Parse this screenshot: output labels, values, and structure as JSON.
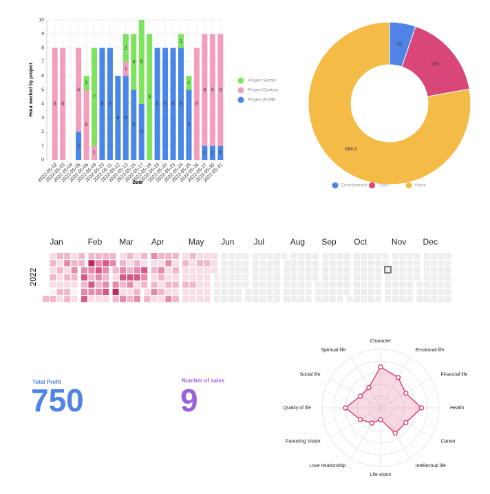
{
  "chart_data": [
    {
      "type": "stacked-bar",
      "y_label": "Hour worked by project",
      "x_label": "Date",
      "categories": [
        "2022-05-02",
        "2022-05-03",
        "2022-05-04",
        "2022-05-05",
        "2022-05-06",
        "2022-05-09",
        "2022-05-10",
        "2022-05-11",
        "2022-05-12",
        "2022-05-13",
        "2022-05-16",
        "2022-05-17",
        "2022-05-18",
        "2022-05-19",
        "2022-05-20",
        "2022-05-23",
        "2022-05-24",
        "2022-05-25",
        "2022-05-26",
        "2022-05-27",
        "2022-05-30",
        "2022-05-31"
      ],
      "series": [
        {
          "name": "Project ACME",
          "color": "#4a86e8",
          "values": [
            0,
            0,
            0,
            2,
            0,
            0,
            8,
            8,
            6,
            6,
            5,
            4,
            0,
            8,
            8,
            8,
            8,
            5,
            0,
            1,
            1,
            1
          ]
        },
        {
          "name": "Project Century",
          "color": "#f29ebf",
          "values": [
            8,
            8,
            0,
            6,
            5,
            1,
            0,
            0,
            0,
            1,
            0,
            0,
            0,
            0,
            0,
            0,
            0,
            0,
            8,
            8,
            8,
            8
          ]
        },
        {
          "name": "Project Secret",
          "color": "#7ee35e",
          "values": [
            0,
            0,
            0,
            0,
            1,
            7,
            0,
            0,
            0,
            2,
            4,
            6,
            9,
            0,
            0,
            0,
            1,
            1,
            0,
            0,
            0,
            0
          ]
        }
      ],
      "ylim": [
        0,
        10
      ],
      "yticks": [
        0,
        1,
        2,
        3,
        4,
        5,
        6,
        7,
        8,
        9,
        10
      ],
      "grid": true,
      "legend": "right"
    },
    {
      "type": "donut",
      "categories": [
        "Entertainment",
        "Food",
        "Home"
      ],
      "values": [
        58,
        189,
        866.5
      ],
      "colors": [
        "#4f83e6",
        "#d9467a",
        "#f5bb47"
      ],
      "legend": "bottom"
    },
    {
      "type": "calendar",
      "year": "2022",
      "months": [
        "Jan",
        "Feb",
        "Mar",
        "Apr",
        "May",
        "Jun",
        "Jul",
        "Aug",
        "Sep",
        "Oct",
        "Nov",
        "Dec"
      ],
      "values": [
        2,
        1,
        2,
        1,
        2,
        1,
        0,
        2,
        2,
        1,
        2,
        1,
        1,
        2,
        1,
        2,
        3,
        1,
        2,
        1,
        2,
        2,
        1,
        2,
        3,
        2,
        1,
        0,
        1,
        2,
        2,
        3,
        4,
        2,
        3,
        4,
        2,
        5,
        3,
        2,
        4,
        3,
        1,
        2,
        3,
        4,
        3,
        2,
        3,
        1,
        2,
        4,
        3,
        2,
        3,
        4,
        1,
        2,
        3,
        2,
        1,
        3,
        5,
        2,
        1,
        2,
        3,
        4,
        2,
        1,
        3,
        2,
        1,
        2,
        4,
        3,
        1,
        2,
        1,
        2,
        3,
        4,
        1,
        2,
        3,
        2,
        1,
        4,
        3,
        2,
        1,
        2,
        3,
        1,
        2,
        1,
        2,
        3,
        1,
        2,
        1,
        3,
        2,
        1,
        2,
        1,
        2,
        3,
        1,
        1,
        2,
        1,
        3,
        2,
        1,
        2,
        1,
        2,
        1,
        2,
        1,
        2,
        1,
        1,
        2,
        1,
        1,
        2,
        1,
        1,
        1,
        2,
        1,
        1,
        1,
        2,
        1,
        1,
        1,
        1,
        1,
        1,
        2,
        1,
        1,
        1,
        1,
        1,
        1,
        1,
        1
      ],
      "colors": [
        "#f7f2f4",
        "#f9dce6",
        "#f2b6cb",
        "#e48aaa",
        "#d5578a",
        "#bb2a63"
      ]
    },
    {
      "type": "radar",
      "categories": [
        "Character",
        "Emotional life",
        "Financial life",
        "Health",
        "Career",
        "Intellectual life",
        "Life vision",
        "Love relationship",
        "Parenting Vision",
        "Quality of life",
        "Social life",
        "Spiritual life"
      ],
      "values": [
        7,
        6,
        5,
        7,
        5,
        5,
        2,
        3,
        4,
        6,
        4,
        4
      ],
      "rlim": [
        0,
        10
      ],
      "color": "#d9467a"
    }
  ],
  "stats": [
    {
      "label": "Total Profit",
      "value": 750,
      "color": "#4f83e6"
    },
    {
      "label": "Number of sales",
      "value": 9,
      "color": "#9a63dc"
    }
  ]
}
